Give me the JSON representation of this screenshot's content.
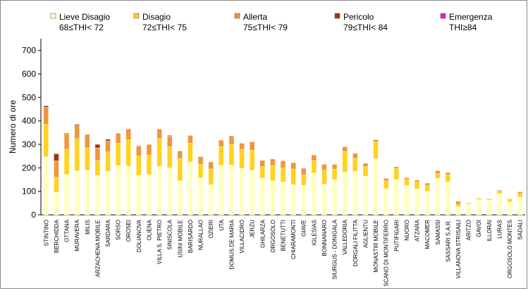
{
  "chart_data": {
    "type": "stacked-bar",
    "y_label": "Numero di ore",
    "categories": [
      "STINTINO",
      "BERCHIDDA",
      "OTTANA",
      "MURAVERA",
      "MILIS",
      "ARZACHENA MOBILE",
      "SARDARA",
      "SORSO",
      "OROSEI",
      "DOLIANOVA",
      "OLIENA",
      "VILLA S. PIETRO",
      "SINISCOLA",
      "USINI MOBILE",
      "BARISARDO",
      "NURALLAO",
      "OZIERI",
      "UTA",
      "DOMUS DE MARIA",
      "VILLACIDRO",
      "JERZU",
      "GHILARZA",
      "ORGOSOLO",
      "BENETUTTI",
      "CHIARAMONTI",
      "GIAVE",
      "IGLESIAS",
      "BONNANARO",
      "SIURGUS - DONIGALA",
      "VALLEDORIA",
      "DORGALI FILITTA",
      "AGLIENTU",
      "MONASTIR MOBILE",
      "SCANO DI MONTIFERRO",
      "PUTIFIGARI",
      "NUORO",
      "ATZARA",
      "MACOMER",
      "SAMASSI",
      "SASSARI S.A.R.",
      "VILLANOVA STRISAILI",
      "ARITZO",
      "GAVOI",
      "ILLORAI",
      "LURAS",
      "ORGOSOLO MONTES",
      "SADALI"
    ],
    "series": [
      {
        "name": "Lieve Disagio",
        "range": "68≤THI< 72",
        "color": "#ffffc0",
        "values": [
          248,
          97,
          172,
          188,
          190,
          168,
          185,
          210,
          208,
          168,
          172,
          207,
          200,
          145,
          225,
          158,
          128,
          212,
          212,
          198,
          190,
          155,
          145,
          140,
          128,
          125,
          178,
          130,
          150,
          182,
          185,
          165,
          240,
          112,
          150,
          125,
          110,
          100,
          155,
          140,
          35,
          45,
          65,
          62,
          90,
          55,
          75
        ]
      },
      {
        "name": "Disagio",
        "range": "72≤THI< 75",
        "color": "#ffd21e",
        "values": [
          137,
          63,
          108,
          137,
          95,
          62,
          83,
          95,
          112,
          82,
          83,
          118,
          90,
          95,
          80,
          57,
          67,
          78,
          88,
          80,
          85,
          50,
          65,
          60,
          67,
          45,
          52,
          60,
          45,
          88,
          55,
          40,
          70,
          33,
          48,
          25,
          30,
          25,
          20,
          30,
          10,
          5,
          5,
          6,
          10,
          13,
          15
        ]
      },
      {
        "name": "Allerta",
        "range": "75≤THI< 79",
        "color": "#f0963c",
        "values": [
          73,
          70,
          65,
          55,
          58,
          55,
          47,
          43,
          45,
          43,
          45,
          40,
          45,
          32,
          33,
          33,
          30,
          28,
          33,
          27,
          35,
          27,
          28,
          30,
          27,
          28,
          25,
          25,
          20,
          20,
          22,
          15,
          10,
          10,
          7,
          8,
          8,
          10,
          13,
          10,
          13,
          0,
          2,
          0,
          5,
          2,
          8
        ]
      },
      {
        "name": "Pericolo",
        "range": "79≤THI< 84",
        "color": "#a03214",
        "values": [
          6,
          30,
          3,
          5,
          0,
          15,
          7,
          0,
          2,
          2,
          0,
          2,
          3,
          0,
          0,
          0,
          0,
          0,
          3,
          0,
          2,
          0,
          0,
          0,
          0,
          0,
          0,
          0,
          0,
          0,
          0,
          0,
          0,
          0,
          0,
          0,
          0,
          0,
          0,
          0,
          0,
          0,
          0,
          0,
          0,
          0,
          0
        ]
      },
      {
        "name": "Emergenza",
        "range": "THI≥84",
        "color": "#ff00ff",
        "values": [
          0,
          0,
          0,
          0,
          0,
          0,
          0,
          0,
          0,
          0,
          0,
          0,
          0,
          0,
          0,
          0,
          0,
          0,
          0,
          0,
          0,
          0,
          0,
          0,
          0,
          0,
          0,
          0,
          0,
          0,
          0,
          0,
          0,
          0,
          0,
          0,
          0,
          0,
          0,
          0,
          0,
          0,
          0,
          0,
          0,
          0,
          0
        ]
      }
    ],
    "ylim": [
      0,
      750
    ],
    "yticks": [
      0,
      100,
      200,
      300,
      400,
      500,
      600,
      700
    ]
  }
}
